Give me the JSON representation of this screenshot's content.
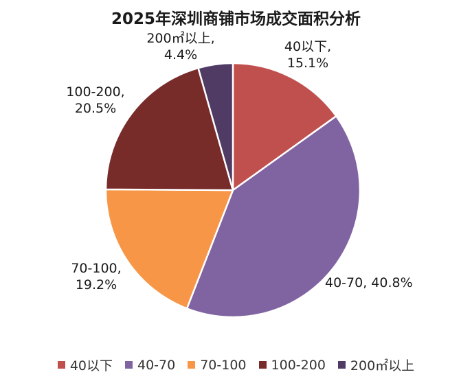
{
  "chart_data": {
    "type": "pie",
    "title": "2025年深圳商铺市场成交面积分析",
    "categories": [
      "40以下",
      "40-70",
      "70-100",
      "100-200",
      "200㎡以上"
    ],
    "values": [
      15.1,
      40.8,
      19.2,
      20.5,
      4.4
    ],
    "unit": "%",
    "colors": [
      "#c0504d",
      "#8064a2",
      "#f79646",
      "#772c2a",
      "#4f3b64"
    ],
    "labels": [
      {
        "lines": [
          "40以下,",
          "15.1%"
        ]
      },
      {
        "lines": [
          "40-70, 40.8%"
        ]
      },
      {
        "lines": [
          "70-100,",
          "19.2%"
        ]
      },
      {
        "lines": [
          "100-200,",
          "20.5%"
        ]
      },
      {
        "lines": [
          "200㎡以上,",
          "4.4%"
        ]
      }
    ],
    "legend": {
      "position": "bottom",
      "entries": [
        "40以下",
        "40-70",
        "70-100",
        "100-200",
        "200㎡以上"
      ]
    }
  }
}
